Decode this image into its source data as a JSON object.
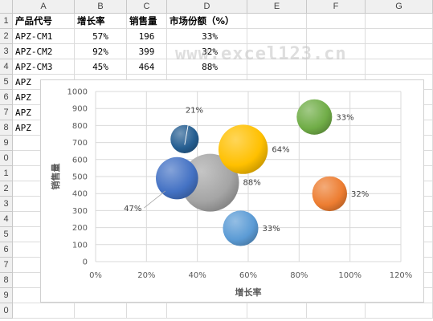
{
  "sheet": {
    "columns": [
      "A",
      "B",
      "C",
      "D",
      "E",
      "F",
      "G"
    ],
    "rows": [
      "1",
      "2",
      "3",
      "4",
      "5",
      "6",
      "7",
      "8",
      "9",
      "0",
      "1",
      "2",
      "3",
      "4",
      "5",
      "6",
      "7",
      "8",
      "9",
      "0"
    ],
    "header": [
      "产品代号",
      "增长率",
      "销售量",
      "市场份额（%）"
    ],
    "data_rows": [
      [
        "APZ-CM1",
        "57%",
        "196",
        "33%"
      ],
      [
        "APZ-CM2",
        "92%",
        "399",
        "32%"
      ],
      [
        "APZ-CM3",
        "45%",
        "464",
        "88%"
      ],
      [
        "APZ",
        "",
        "",
        ""
      ],
      [
        "APZ",
        "",
        "",
        ""
      ],
      [
        "APZ",
        "",
        "",
        ""
      ],
      [
        "APZ",
        "",
        "",
        ""
      ]
    ]
  },
  "watermark": "www.excel123.cn",
  "chart_data": {
    "type": "bubble",
    "xlabel": "增长率",
    "ylabel": "销售量",
    "xlim": [
      0,
      1.2
    ],
    "ylim": [
      0,
      1000
    ],
    "x_ticks": [
      "0%",
      "20%",
      "40%",
      "60%",
      "80%",
      "100%",
      "120%"
    ],
    "y_ticks": [
      "0",
      "100",
      "200",
      "300",
      "400",
      "500",
      "600",
      "700",
      "800",
      "900",
      "1000"
    ],
    "grid": true,
    "points": [
      {
        "x": 0.45,
        "y": 464,
        "size": 88,
        "label": "88%",
        "color": "#a5a5a5"
      },
      {
        "x": 0.58,
        "y": 660,
        "size": 64,
        "label": "64%",
        "color": "#ffc000"
      },
      {
        "x": 0.32,
        "y": 490,
        "size": 47,
        "label": "47%",
        "color": "#4472c4"
      },
      {
        "x": 0.57,
        "y": 196,
        "size": 33,
        "label": "33%",
        "color": "#5b9bd5"
      },
      {
        "x": 0.92,
        "y": 399,
        "size": 32,
        "label": "32%",
        "color": "#ed7d31"
      },
      {
        "x": 0.86,
        "y": 850,
        "size": 33,
        "label": "33%",
        "color": "#70ad47"
      },
      {
        "x": 0.35,
        "y": 720,
        "size": 21,
        "label": "21%",
        "color": "#255e91"
      }
    ]
  }
}
